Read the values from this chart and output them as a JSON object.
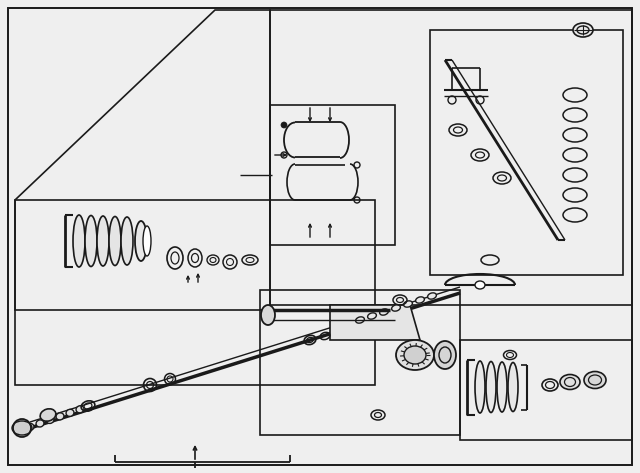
{
  "bg_color": "#efefef",
  "line_color": "#1a1a1a",
  "fig_width": 6.4,
  "fig_height": 4.73,
  "dpi": 100
}
